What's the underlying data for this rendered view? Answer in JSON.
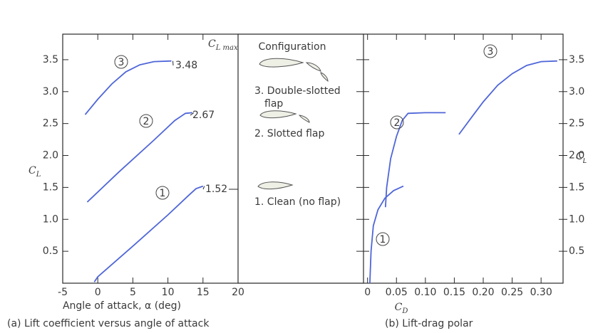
{
  "chart_data": [
    {
      "type": "line",
      "caption": "(a) Lift coefficient versus angle of attack",
      "xlabel": "Angle of attack, α (deg)",
      "ylabel": {
        "text": "C",
        "sub": "L"
      },
      "column_label": {
        "text": "C",
        "sub": "L max"
      },
      "xlim": [
        -5,
        20
      ],
      "ylim": [
        0,
        3.9
      ],
      "xticks": [
        -5,
        0,
        5,
        10,
        15,
        20
      ],
      "yticks": [
        0.5,
        {
          "value": 1,
          "label": "1.0"
        },
        1.5,
        {
          "value": 2,
          "label": "2.0"
        },
        2.5,
        {
          "value": 3,
          "label": "3.0"
        },
        3.5
      ],
      "series": [
        {
          "name": "1",
          "color": "#4f66d8",
          "max": 1.52,
          "x": [
            -0.5,
            0,
            5,
            10,
            13,
            14,
            15
          ],
          "values": [
            0.02,
            0.1,
            0.58,
            1.07,
            1.38,
            1.48,
            1.52
          ]
        },
        {
          "name": "2",
          "color": "#4f66d8",
          "max": 2.67,
          "x": [
            -1.5,
            3,
            8,
            11,
            12.5,
            13.5
          ],
          "values": [
            1.27,
            1.74,
            2.24,
            2.55,
            2.66,
            2.67
          ]
        },
        {
          "name": "3",
          "color": "#4f66d8",
          "max": 3.48,
          "x": [
            -1.8,
            0,
            2,
            4,
            6,
            8,
            10.5
          ],
          "values": [
            2.64,
            2.88,
            3.12,
            3.31,
            3.42,
            3.47,
            3.48
          ]
        }
      ]
    },
    {
      "type": "line",
      "caption": "(b) Lift-drag polar",
      "xlabel": {
        "text": "C",
        "sub": "D"
      },
      "ylabel": {
        "text": "C",
        "sub": "L"
      },
      "xlim": [
        -0.007,
        0.338
      ],
      "ylim": [
        0,
        3.9
      ],
      "xticks": [
        0,
        0.05,
        {
          "value": 0.1,
          "label": "0.10"
        },
        0.15,
        {
          "value": 0.2,
          "label": "0.20"
        },
        0.25,
        {
          "value": 0.3,
          "label": "0.30"
        }
      ],
      "yticks": [
        0.5,
        {
          "value": 1,
          "label": "1.0"
        },
        1.5,
        {
          "value": 2,
          "label": "2.0"
        },
        2.5,
        {
          "value": 3,
          "label": "3.0"
        },
        3.5
      ],
      "series": [
        {
          "name": "1",
          "color": "#4f66d8",
          "x": [
            0.004,
            0.006,
            0.01,
            0.018,
            0.03,
            0.045,
            0.062
          ],
          "values": [
            0,
            0.5,
            0.9,
            1.15,
            1.33,
            1.45,
            1.52
          ]
        },
        {
          "name": "2",
          "color": "#4f66d8",
          "x": [
            0.031,
            0.033,
            0.04,
            0.05,
            0.06,
            0.07,
            0.1,
            0.135
          ],
          "values": [
            1.19,
            1.5,
            1.95,
            2.3,
            2.55,
            2.66,
            2.67,
            2.67
          ]
        },
        {
          "name": "3",
          "color": "#4f66d8",
          "x": [
            0.158,
            0.18,
            0.2,
            0.225,
            0.25,
            0.275,
            0.3,
            0.328
          ],
          "values": [
            2.33,
            2.6,
            2.84,
            3.1,
            3.28,
            3.41,
            3.47,
            3.48
          ]
        }
      ]
    }
  ],
  "configuration": {
    "title": "Configuration",
    "items": [
      {
        "lines": [
          "3. Double-slotted",
          "flap"
        ]
      },
      {
        "lines": [
          "2. Slotted flap"
        ]
      },
      {
        "lines": [
          "1. Clean (no flap)"
        ]
      }
    ]
  }
}
